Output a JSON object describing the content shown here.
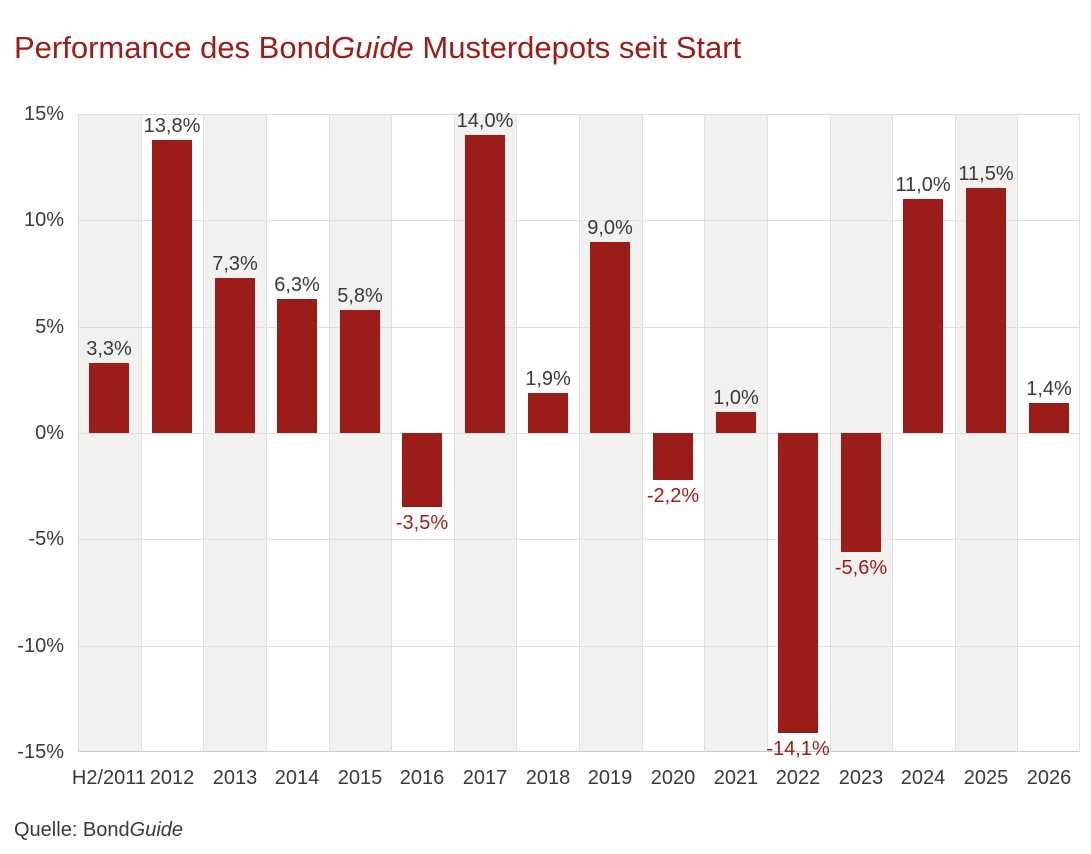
{
  "title": {
    "part1": "Performance des Bond",
    "italic": "Guide",
    "part2": " Musterdepots seit Start"
  },
  "source": {
    "prefix": "Quelle: Bond",
    "italic": "Guide"
  },
  "colors": {
    "bar": "#9B1C18",
    "title_text": "#9B1C18",
    "negative_label": "#9B1C18",
    "axis_text": "#3A3A3A",
    "stripe": "#F1F1F0",
    "gridline": "#DEDEDE"
  },
  "chart_data": {
    "type": "bar",
    "title": "Performance des BondGuide Musterdepots seit Start",
    "source": "Quelle: BondGuide",
    "categories": [
      "H2/2011",
      "2012",
      "2013",
      "2014",
      "2015",
      "2016",
      "2017",
      "2018",
      "2019",
      "2020",
      "2021",
      "2022",
      "2023",
      "2024",
      "2025",
      "2026"
    ],
    "values": [
      3.3,
      13.8,
      7.3,
      6.3,
      5.8,
      -3.5,
      14.0,
      1.9,
      9.0,
      -2.2,
      1.0,
      -14.1,
      -5.6,
      11.0,
      11.5,
      1.4
    ],
    "value_labels": [
      "3,3%",
      "13,8%",
      "7,3%",
      "6,3%",
      "5,8%",
      "-3,5%",
      "14,0%",
      "1,9%",
      "9,0%",
      "-2,2%",
      "1,0%",
      "-14,1%",
      "-5,6%",
      "11,0%",
      "11,5%",
      "1,4%"
    ],
    "y_ticks": [
      "15%",
      "10%",
      "5%",
      "0%",
      "-5%",
      "-10%",
      "-15%"
    ],
    "ylim": [
      -15,
      15
    ],
    "y_step": 5,
    "grid": true,
    "legend": "none",
    "background_stripes": "alternating gray/white per category, starting gray"
  }
}
